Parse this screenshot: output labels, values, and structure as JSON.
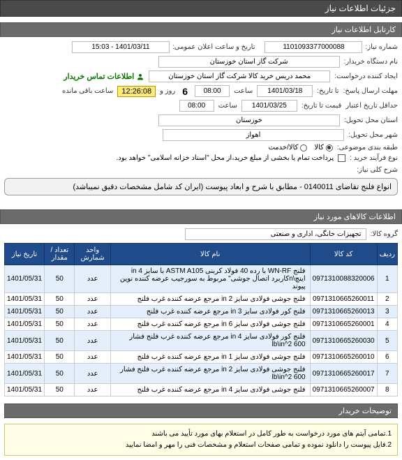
{
  "header": {
    "title": "جزئیات اطلاعات نیاز"
  },
  "section1": {
    "title": "کارتابل اطلاعات نیاز"
  },
  "form": {
    "req_no_label": "شماره نیاز:",
    "req_no": "1101093377000088",
    "announce_label": "تاریخ و ساعت اعلان عمومی:",
    "announce_value": "1401/03/11 - 15:03",
    "org_label": "نام دستگاه خریدار:",
    "org_value": "شرکت گاز استان خوزستان",
    "creator_label": "ایجاد کننده درخواست:",
    "creator_value": "محمد دریس خرید کالا شرکت گاز استان خوزستان",
    "contact_label": "اطلاعات تماس خریدار",
    "deadline_label": "مهلت ارسال پاسخ:",
    "deadline_until_label": "تا تاریخ:",
    "deadline_date": "1401/03/18",
    "deadline_time_label": "ساعت",
    "deadline_time": "08:00",
    "days_label": "روز و",
    "days_value": "6",
    "remain_label": "ساعت باقی مانده",
    "remain_time": "12:26:08",
    "validity_label": "حداقل تاریخ اعتبار",
    "validity_until_label": "قیمت تا تاریخ:",
    "validity_date": "1401/03/25",
    "validity_time_label": "ساعت",
    "validity_time": "08:00",
    "province_label": "استان محل تحویل:",
    "province_value": "خوزستان",
    "city_label": "شهر محل تحویل:",
    "city_value": "اهواز",
    "class_label": "طبقه بندی موضوعی:",
    "class_options": {
      "kala": "کالا",
      "khadamat": "کالا/خدمت"
    },
    "buy_method_label": "نوع فرآیند خرید :",
    "buy_method_text": "پرداخت تمام یا بخشی از مبلغ خرید،از محل \"اسناد خزانه اسلامی\" خواهد بود."
  },
  "summary": {
    "title_label": "شرح کلی نیاز:",
    "title_text": "انواع فلنج تقاضای 0140011 - مطابق با شرح و ابعاد پیوست (ایران کد شامل مشخصات دقیق نمیباشد)"
  },
  "items_section": {
    "title": "اطلاعات کالاهای مورد نیاز"
  },
  "group": {
    "label": "گروه کالا:",
    "value": "تجهیزات خانگی، اداری و صنعتی"
  },
  "table": {
    "columns": [
      "ردیف",
      "کد کالا",
      "نام کالا",
      "واحد شمارش",
      "تعداد / مقدار",
      "تاریخ نیاز"
    ],
    "rows": [
      [
        "1",
        "0971310088320006",
        "فلنج WN-RF با رده 40 فولاد کربنی ASTM A105 با سایز in 4 اینچ\\nکاربرد اتصال جوشی\" مربوط به سورجیب عرضه کننده نوین پیوند",
        "عدد",
        "50",
        "1401/05/31"
      ],
      [
        "2",
        "0971310665260011",
        "فلنج جوشی فولادی سایز in 2 مرجع عرضه کننده غرب فلنج",
        "عدد",
        "50",
        "1401/05/31"
      ],
      [
        "3",
        "0971310665260013",
        "فلنج کور فولادی سایز in 3 مرجع عرضه کننده غرب فلنج",
        "عدد",
        "50",
        "1401/05/31"
      ],
      [
        "4",
        "0971310665260001",
        "فلنج جوشی فولادی سایز in 6 مرجع عرضه کننده غرب فلنج",
        "عدد",
        "50",
        "1401/05/31"
      ],
      [
        "5",
        "0971310665260030",
        "فلنج کور فولادی سایز in 4 مرجع عرضه کننده غرب فلنج فشار lb\\in^2 600",
        "عدد",
        "50",
        "1401/05/31"
      ],
      [
        "6",
        "0971310665260010",
        "فلنج جوشی فولادی سایز in 1 مرجع عرضه کننده غرب فلنج",
        "عدد",
        "50",
        "1401/05/31"
      ],
      [
        "7",
        "0971310665260017",
        "فلنج جوشی فولادی سایز in 2 مرجع عرضه کننده غرب فلنج فشار lb\\in^2 600",
        "عدد",
        "50",
        "1401/05/31"
      ],
      [
        "8",
        "0971310665260007",
        "فلنج جوشی فولادی سایز in 4 مرجع عرضه کننده غرب فلنج",
        "عدد",
        "50",
        "1401/05/31"
      ]
    ]
  },
  "notes": {
    "heading": "توضیحات خریدار",
    "line1": "1.تمامی آیتم های مورد درخواست به طور کامل در استعلام بهای مورد تأیید می باشند",
    "line2": "2.فایل پیوست را دانلود نموده و تمامی صفحات استعلام و مشخصات فنی را مهر و امضا نمایید"
  }
}
